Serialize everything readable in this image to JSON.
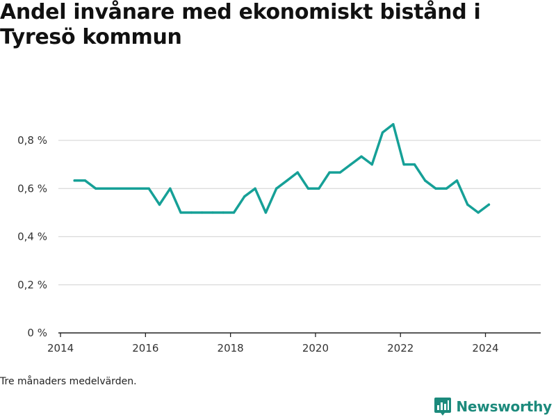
{
  "title": "Andel invånare med ekonomiskt bistånd i Tyresö kommun",
  "note": "Tre månaders medelvärden.",
  "brand": {
    "name": "Newsworthy",
    "icon": "newsworthy-logo-icon",
    "color": "#1c8a7c"
  },
  "colors": {
    "line": "#16a097",
    "grid": "#d9d9d9",
    "axis": "#222222"
  },
  "chart_data": {
    "type": "line",
    "title": "Andel invånare med ekonomiskt bistånd i Tyresö kommun",
    "xlabel": "",
    "ylabel": "",
    "xlim": [
      2013.95,
      2025.3
    ],
    "ylim": [
      0,
      0.8
    ],
    "x_ticks": [
      2014,
      2016,
      2018,
      2020,
      2022,
      2024
    ],
    "x_tick_labels": [
      "2014",
      "2016",
      "2018",
      "2020",
      "2022",
      "2024"
    ],
    "y_ticks": [
      0,
      0.2,
      0.4,
      0.6,
      0.8
    ],
    "y_tick_labels": [
      "0 %",
      "0,2 %",
      "0,4 %",
      "0,6 %",
      "0,8 %"
    ],
    "grid": true,
    "legend": "none",
    "series": [
      {
        "x": [
          2014.33,
          2014.58,
          2014.83,
          2015.08,
          2015.33,
          2015.58,
          2015.83,
          2016.08,
          2016.33,
          2016.58,
          2016.83,
          2017.08,
          2017.33,
          2017.58,
          2017.83,
          2018.08,
          2018.33,
          2018.58,
          2018.83,
          2019.08,
          2019.33,
          2019.58,
          2019.83,
          2020.08,
          2020.33,
          2020.58,
          2020.83,
          2021.08,
          2021.33,
          2021.58,
          2021.83,
          2022.08,
          2022.33,
          2022.58,
          2022.83,
          2023.08,
          2023.33,
          2023.58,
          2023.83,
          2024.08
        ],
        "values": [
          0.633,
          0.633,
          0.6,
          0.6,
          0.6,
          0.6,
          0.6,
          0.6,
          0.533,
          0.6,
          0.5,
          0.5,
          0.5,
          0.5,
          0.5,
          0.5,
          0.567,
          0.6,
          0.5,
          0.6,
          0.633,
          0.667,
          0.6,
          0.6,
          0.667,
          0.667,
          0.7,
          0.733,
          0.7,
          0.833,
          0.867,
          0.7,
          0.7,
          0.633,
          0.6,
          0.6,
          0.633,
          0.533,
          0.5,
          0.533
        ]
      }
    ]
  }
}
